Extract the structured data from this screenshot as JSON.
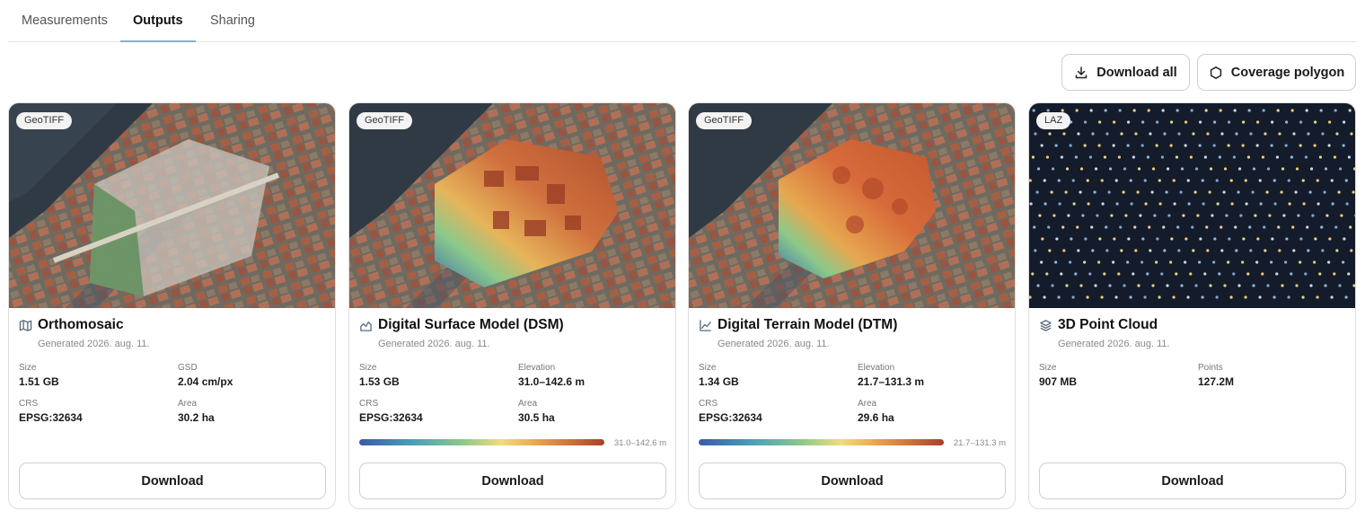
{
  "tabs": [
    {
      "label": "Measurements"
    },
    {
      "label": "Outputs"
    },
    {
      "label": "Sharing"
    }
  ],
  "actions": {
    "download_all": "Download all",
    "coverage_polygon": "Coverage polygon"
  },
  "cards": [
    {
      "format": "GeoTIFF",
      "title": "Orthomosaic",
      "generated": "Generated 2026. aug. 11.",
      "size_label": "Size",
      "size": "1.51 GB",
      "right1_label": "GSD",
      "right1": "2.04 cm/px",
      "crs_label": "CRS",
      "crs": "EPSG:32634",
      "area_label": "Area",
      "area": "30.2 ha",
      "download": "Download"
    },
    {
      "format": "GeoTIFF",
      "title": "Digital Surface Model (DSM)",
      "generated": "Generated 2026. aug. 11.",
      "size_label": "Size",
      "size": "1.53 GB",
      "right1_label": "Elevation",
      "right1": "31.0–142.6 m",
      "crs_label": "CRS",
      "crs": "EPSG:32634",
      "area_label": "Area",
      "area": "30.5 ha",
      "ramp": "31.0–142.6 m",
      "download": "Download"
    },
    {
      "format": "GeoTIFF",
      "title": "Digital Terrain Model (DTM)",
      "generated": "Generated 2026. aug. 11.",
      "size_label": "Size",
      "size": "1.34 GB",
      "right1_label": "Elevation",
      "right1": "21.7–131.3 m",
      "crs_label": "CRS",
      "crs": "EPSG:32634",
      "area_label": "Area",
      "area": "29.6 ha",
      "ramp": "21.7–131.3 m",
      "download": "Download"
    },
    {
      "format": "LAZ",
      "title": "3D Point Cloud",
      "generated": "Generated 2026. aug. 11.",
      "size_label": "Size",
      "size": "907 MB",
      "right1_label": "Points",
      "right1": "127.2M",
      "download": "Download"
    }
  ],
  "icons": {
    "download_all": "download-icon",
    "coverage": "hexagon-icon",
    "card1": "map-icon",
    "card2": "surface-chart-icon",
    "card3": "line-chart-icon",
    "card4": "layers-icon"
  },
  "colors": {
    "accent_tab": "#8ab0c6",
    "point_cloud_bg": "#141c2b"
  }
}
